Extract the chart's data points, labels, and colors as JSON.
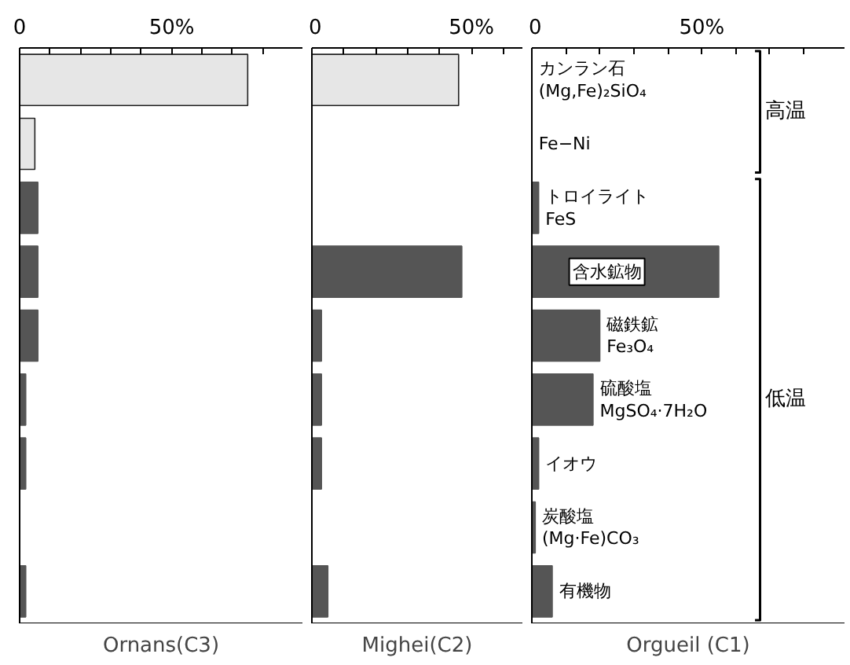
{
  "chart_data": [
    {
      "type": "bar",
      "orientation": "horizontal",
      "xlabel": "Ornans(C3)",
      "categories": [
        null,
        null,
        null,
        null,
        null,
        null,
        null,
        null,
        null
      ],
      "values": [
        75,
        5,
        6,
        6,
        6,
        2,
        2,
        0,
        2
      ],
      "colors": [
        "#e6e6e6",
        "#e6e6e6",
        "#555555",
        "#555555",
        "#555555",
        "#555555",
        "#555555",
        "#555555",
        "#555555"
      ],
      "xlim": [
        0,
        93
      ],
      "xticks": [
        0,
        {
          "value": 10,
          "label": null
        },
        {
          "value": 20,
          "label": null
        },
        {
          "value": 30,
          "label": null
        },
        {
          "value": 40,
          "label": null
        },
        {
          "value": 50,
          "label": "50%"
        },
        {
          "value": 60,
          "label": null
        },
        {
          "value": 70,
          "label": null
        },
        {
          "value": 80,
          "label": null
        }
      ],
      "tick_labels": "x"
    },
    {
      "type": "bar",
      "orientation": "horizontal",
      "xlabel": "Mighei(C2)",
      "categories": [
        null,
        null,
        null,
        null,
        null,
        null,
        null,
        null,
        null
      ],
      "values": [
        46,
        0,
        0,
        47,
        3,
        3,
        3,
        0,
        5
      ],
      "colors": [
        "#e6e6e6",
        "#e6e6e6",
        "#555555",
        "#555555",
        "#555555",
        "#555555",
        "#555555",
        "#555555",
        "#555555"
      ],
      "xlim": [
        0,
        66
      ],
      "xticks": [
        0,
        {
          "value": 10,
          "label": null
        },
        {
          "value": 20,
          "label": null
        },
        {
          "value": 30,
          "label": null
        },
        {
          "value": 40,
          "label": null
        },
        {
          "value": 50,
          "label": "50%"
        },
        {
          "value": 60,
          "label": null
        }
      ],
      "tick_labels": "x"
    },
    {
      "type": "bar",
      "orientation": "horizontal",
      "xlabel": "Orgueil (C1)",
      "categories": [
        "カンラン石\n(Mg,Fe)₂SiO₄",
        "Fe−Ni",
        "トロイライト\nFeS",
        "含水鉱物",
        "磁鉄鉱\nFe₃O₄",
        "硫酸塩\nMgSO₄·7H₂O",
        "イオウ",
        "炭酸塩\n(Mg·Fe)CO₃",
        "有機物"
      ],
      "values": [
        0,
        0,
        2,
        55,
        20,
        18,
        2,
        1,
        6
      ],
      "colors": [
        "#e6e6e6",
        "#e6e6e6",
        "#555555",
        "#555555",
        "#555555",
        "#555555",
        "#555555",
        "#555555",
        "#555555"
      ],
      "xlim": [
        0,
        92
      ],
      "xticks": [
        0,
        {
          "value": 10,
          "label": null
        },
        {
          "value": 20,
          "label": null
        },
        {
          "value": 30,
          "label": null
        },
        {
          "value": 40,
          "label": null
        },
        {
          "value": 50,
          "label": "50%"
        },
        {
          "value": 60,
          "label": null
        },
        {
          "value": 70,
          "label": null
        },
        {
          "value": 80,
          "label": null
        }
      ],
      "annotations": [
        "高温",
        "低温"
      ]
    }
  ]
}
